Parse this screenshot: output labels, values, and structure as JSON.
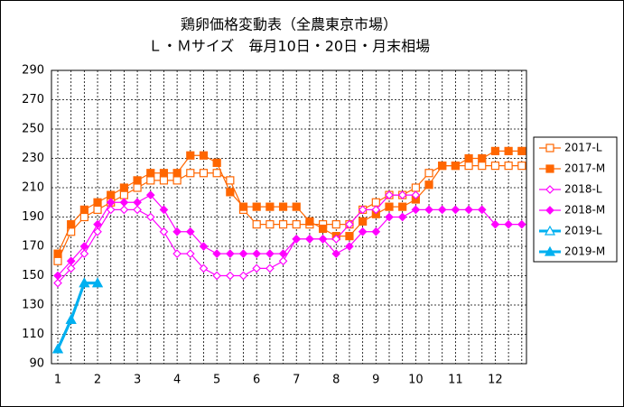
{
  "chart_data": {
    "type": "line",
    "title": [
      "鶏卵価格変動表（全農東京市場）",
      "Ｌ・Ｍサイズ　毎月10日・20日・月末相場"
    ],
    "categories": [
      "1",
      null,
      null,
      "2",
      null,
      null,
      "3",
      null,
      null,
      "4",
      null,
      null,
      "5",
      null,
      null,
      "6",
      null,
      null,
      "7",
      null,
      null,
      "8",
      null,
      null,
      "9",
      null,
      null,
      "10",
      null,
      null,
      "11",
      null,
      null,
      "12",
      null,
      null
    ],
    "ylim": [
      90,
      290
    ],
    "yticks": [
      90,
      110,
      130,
      150,
      170,
      190,
      210,
      230,
      250,
      270,
      290
    ],
    "grid": true,
    "legend": "right",
    "series": [
      {
        "name": "2017-L",
        "color": "#ff6600",
        "marker": "square",
        "filled": false,
        "values": [
          160,
          180,
          190,
          195,
          200,
          205,
          210,
          215,
          215,
          215,
          220,
          220,
          220,
          215,
          195,
          185,
          185,
          185,
          185,
          185,
          185,
          185,
          185,
          195,
          200,
          205,
          205,
          210,
          220,
          225,
          225,
          225,
          225,
          225,
          225,
          225
        ]
      },
      {
        "name": "2017-M",
        "color": "#ff6600",
        "marker": "square",
        "filled": true,
        "values": [
          165,
          185,
          195,
          200,
          205,
          210,
          215,
          220,
          220,
          220,
          232,
          232,
          227,
          207,
          197,
          197,
          197,
          197,
          197,
          187,
          182,
          177,
          177,
          187,
          192,
          197,
          197,
          202,
          212,
          225,
          225,
          230,
          230,
          235,
          235,
          235
        ]
      },
      {
        "name": "2018-L",
        "color": "#ff00ff",
        "marker": "diamond",
        "filled": false,
        "values": [
          145,
          155,
          165,
          180,
          195,
          195,
          195,
          190,
          180,
          165,
          165,
          155,
          150,
          150,
          150,
          155,
          155,
          160,
          175,
          175,
          175,
          175,
          185,
          195,
          195,
          205,
          205,
          205,
          null,
          null,
          null,
          null,
          null,
          null,
          null,
          null
        ]
      },
      {
        "name": "2018-M",
        "color": "#ff00ff",
        "marker": "diamond",
        "filled": true,
        "values": [
          150,
          160,
          170,
          185,
          200,
          200,
          200,
          205,
          195,
          180,
          180,
          170,
          165,
          165,
          165,
          165,
          165,
          165,
          175,
          175,
          175,
          165,
          170,
          180,
          180,
          190,
          190,
          195,
          195,
          195,
          195,
          195,
          195,
          185,
          185,
          185
        ]
      },
      {
        "name": "2019-L",
        "color": "#00b0f0",
        "marker": "triangle",
        "filled": false,
        "values": [
          100,
          120,
          145,
          145,
          null,
          null,
          null,
          null,
          null,
          null,
          null,
          null,
          null,
          null,
          null,
          null,
          null,
          null,
          null,
          null,
          null,
          null,
          null,
          null,
          null,
          null,
          null,
          null,
          null,
          null,
          null,
          null,
          null,
          null,
          null,
          null
        ]
      },
      {
        "name": "2019-M",
        "color": "#00b0f0",
        "marker": "triangle",
        "filled": true,
        "values": [
          100,
          120,
          145,
          145,
          null,
          null,
          null,
          null,
          null,
          null,
          null,
          null,
          null,
          null,
          null,
          null,
          null,
          null,
          null,
          null,
          null,
          null,
          null,
          null,
          null,
          null,
          null,
          null,
          null,
          null,
          null,
          null,
          null,
          null,
          null,
          null
        ]
      }
    ]
  }
}
